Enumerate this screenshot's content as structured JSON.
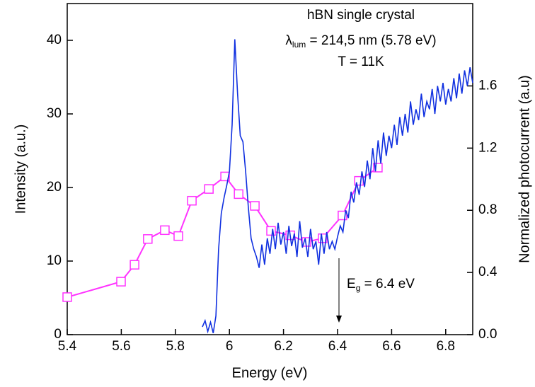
{
  "chart_data": {
    "type": "line",
    "xlabel": "Energy (eV)",
    "ylabel": "Intensity (a.u.)",
    "y2label": "Normalized photocurrent (a.u)",
    "annotations": [
      {
        "text": "hBN single crystal"
      },
      {
        "text": "λ",
        "sub": "lum",
        "rest": " = 214,5 nm (5.78 eV)"
      },
      {
        "text": "T = 11K"
      },
      {
        "text": "E",
        "sub": "g",
        "rest": " = 6.4 eV"
      }
    ],
    "xlim": [
      5.4,
      6.9
    ],
    "xticks": [
      5.4,
      5.6,
      5.8,
      6.0,
      6.2,
      6.4,
      6.6,
      6.8
    ],
    "ylim": [
      0,
      45
    ],
    "yticks": [
      0,
      10,
      20,
      30,
      40
    ],
    "y2lim": [
      0,
      2.13
    ],
    "y2ticks": [
      {
        "value": 0,
        "label": "0.0"
      },
      0.4,
      0.8,
      1.2,
      1.6
    ],
    "series": [
      {
        "color": "#ff33ff",
        "marker": "square",
        "axis": "y",
        "x": [
          5.4,
          5.599,
          5.649,
          5.698,
          5.761,
          5.811,
          5.861,
          5.924,
          5.984,
          6.034,
          6.094,
          6.154,
          6.225,
          6.285,
          6.345,
          6.418,
          6.479,
          6.549
        ],
        "values": [
          5.1,
          7.2,
          9.5,
          13.0,
          14.2,
          13.4,
          18.2,
          19.8,
          21.5,
          19.1,
          17.5,
          14.1,
          13.5,
          12.6,
          13.1,
          16.2,
          20.9,
          22.7
        ]
      },
      {
        "color": "#1030e0",
        "marker": "none",
        "axis": "y2",
        "x": [
          5.9,
          5.91,
          5.92,
          5.93,
          5.94,
          5.95,
          5.96,
          5.97,
          5.98,
          5.99,
          6.0,
          6.01,
          6.02,
          6.03,
          6.04,
          6.05,
          6.06,
          6.07,
          6.08,
          6.09,
          6.1,
          6.11,
          6.12,
          6.13,
          6.14,
          6.15,
          6.16,
          6.17,
          6.18,
          6.19,
          6.2,
          6.21,
          6.22,
          6.23,
          6.24,
          6.25,
          6.26,
          6.27,
          6.28,
          6.29,
          6.3,
          6.31,
          6.32,
          6.33,
          6.34,
          6.35,
          6.36,
          6.37,
          6.38,
          6.39,
          6.4,
          6.41,
          6.42,
          6.43,
          6.44,
          6.45,
          6.46,
          6.47,
          6.48,
          6.49,
          6.5,
          6.51,
          6.52,
          6.53,
          6.54,
          6.55,
          6.56,
          6.57,
          6.58,
          6.59,
          6.6,
          6.61,
          6.62,
          6.63,
          6.64,
          6.65,
          6.66,
          6.67,
          6.68,
          6.69,
          6.7,
          6.71,
          6.72,
          6.73,
          6.74,
          6.75,
          6.76,
          6.77,
          6.78,
          6.79,
          6.8,
          6.81,
          6.82,
          6.83,
          6.84,
          6.85,
          6.86,
          6.87,
          6.88,
          6.89,
          6.9
        ],
        "values": [
          0.05,
          0.09,
          0.02,
          0.08,
          0.01,
          0.12,
          0.55,
          0.78,
          0.88,
          0.96,
          1.05,
          1.35,
          1.9,
          1.55,
          1.28,
          1.24,
          1.05,
          0.82,
          0.62,
          0.55,
          0.5,
          0.43,
          0.58,
          0.45,
          0.62,
          0.52,
          0.68,
          0.55,
          0.72,
          0.58,
          0.66,
          0.52,
          0.7,
          0.57,
          0.65,
          0.5,
          0.73,
          0.56,
          0.62,
          0.5,
          0.68,
          0.55,
          0.6,
          0.45,
          0.65,
          0.52,
          0.66,
          0.55,
          0.6,
          0.55,
          0.63,
          0.7,
          0.66,
          0.8,
          0.75,
          0.92,
          0.85,
          0.98,
          0.9,
          1.05,
          0.95,
          1.12,
          1.0,
          1.2,
          1.05,
          1.25,
          1.1,
          1.3,
          1.15,
          1.28,
          1.2,
          1.35,
          1.22,
          1.4,
          1.28,
          1.42,
          1.3,
          1.5,
          1.35,
          1.45,
          1.38,
          1.55,
          1.4,
          1.5,
          1.45,
          1.58,
          1.42,
          1.6,
          1.5,
          1.62,
          1.48,
          1.58,
          1.5,
          1.65,
          1.52,
          1.68,
          1.55,
          1.7,
          1.6,
          1.72,
          1.62
        ]
      }
    ]
  }
}
